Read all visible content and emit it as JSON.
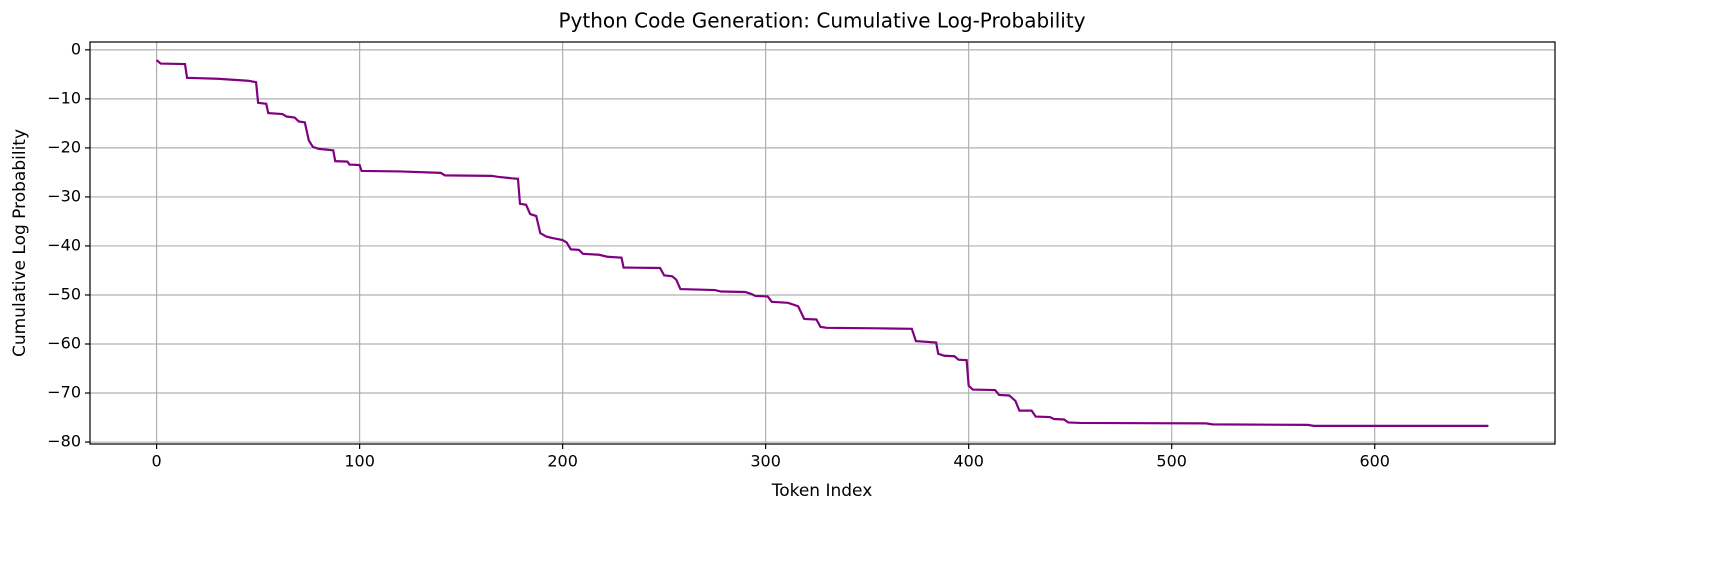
{
  "chart_data": {
    "type": "line",
    "title": "Python Code Generation: Cumulative Log-Probability",
    "xlabel": "Token Index",
    "ylabel": "Cumulative Log Probability",
    "x": [
      0,
      2,
      14,
      15,
      30,
      45,
      49,
      50,
      54,
      55,
      62,
      64,
      68,
      70,
      73,
      75,
      77,
      80,
      87,
      88,
      94,
      95,
      100,
      101,
      120,
      140,
      142,
      165,
      168,
      175,
      178,
      179,
      182,
      184,
      187,
      189,
      192,
      195,
      200,
      202,
      204,
      208,
      210,
      218,
      222,
      229,
      230,
      248,
      250,
      254,
      256,
      258,
      275,
      278,
      290,
      293,
      295,
      301,
      303,
      311,
      316,
      319,
      325,
      327,
      330,
      355,
      372,
      374,
      384,
      385,
      388,
      393,
      395,
      399,
      400,
      402,
      413,
      415,
      420,
      423,
      425,
      431,
      433,
      440,
      442,
      447,
      449,
      455,
      517,
      520,
      567,
      570,
      656
    ],
    "series": [
      {
        "name": "Cumulative Log Probability",
        "color": "#800080",
        "values": [
          -2.1,
          -2.8,
          -2.9,
          -5.7,
          -5.9,
          -6.3,
          -6.6,
          -10.8,
          -11.0,
          -12.9,
          -13.1,
          -13.6,
          -13.8,
          -14.6,
          -14.8,
          -18.5,
          -19.8,
          -20.2,
          -20.5,
          -22.7,
          -22.8,
          -23.4,
          -23.5,
          -24.7,
          -24.8,
          -25.1,
          -25.6,
          -25.7,
          -25.9,
          -26.2,
          -26.3,
          -31.4,
          -31.6,
          -33.5,
          -33.9,
          -37.4,
          -38.1,
          -38.4,
          -38.8,
          -39.3,
          -40.7,
          -40.8,
          -41.6,
          -41.8,
          -42.2,
          -42.4,
          -44.4,
          -44.5,
          -46.0,
          -46.2,
          -46.9,
          -48.8,
          -49.0,
          -49.3,
          -49.4,
          -49.8,
          -50.2,
          -50.3,
          -51.4,
          -51.6,
          -52.3,
          -54.9,
          -55.0,
          -56.5,
          -56.7,
          -56.8,
          -56.9,
          -59.4,
          -59.7,
          -62.0,
          -62.4,
          -62.5,
          -63.2,
          -63.3,
          -68.5,
          -69.3,
          -69.4,
          -70.4,
          -70.5,
          -71.6,
          -73.6,
          -73.6,
          -74.8,
          -74.9,
          -75.3,
          -75.4,
          -76.0,
          -76.1,
          -76.2,
          -76.4,
          -76.5,
          -76.7,
          -76.7
        ]
      }
    ],
    "xlim": [
      -32.8,
      688.8
    ],
    "xticks": [
      0,
      100,
      200,
      300,
      400,
      500,
      600
    ],
    "ylim": [
      -80.4,
      1.6
    ],
    "yticks": [
      0,
      {
        "value": -10,
        "label": "−10"
      },
      {
        "value": -20,
        "label": "−20"
      },
      {
        "value": -30,
        "label": "−30"
      },
      {
        "value": -40,
        "label": "−40"
      },
      {
        "value": -50,
        "label": "−50"
      },
      {
        "value": -60,
        "label": "−60"
      },
      {
        "value": -70,
        "label": "−70"
      },
      {
        "value": -80,
        "label": "−80"
      }
    ],
    "grid": true
  }
}
